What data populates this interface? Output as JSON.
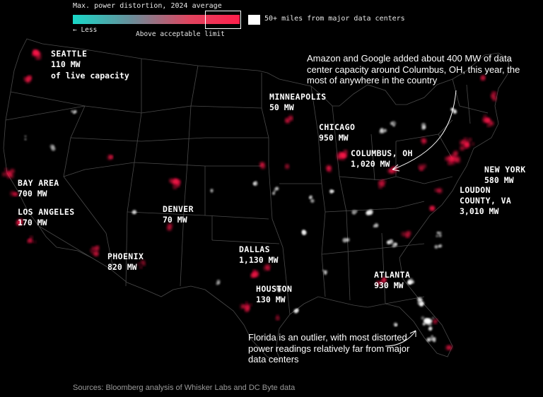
{
  "legend": {
    "title": "Max. power distortion, 2024 average",
    "less_label": "← Less",
    "above_label": "Above acceptable limit",
    "far_label": "50+ miles from major data centers",
    "color_low": "#19d8c8",
    "color_high": "#ff1f4b",
    "color_far": "#ffffff"
  },
  "cities": [
    {
      "name": "SEATTLE",
      "mw": "110 MW"
    },
    {
      "name": "MINNEAPOLIS",
      "mw": "50 MW"
    },
    {
      "name": "CHICAGO",
      "mw": "950 MW"
    },
    {
      "name": "COLUMBUS, OH",
      "mw": "1,020 MW"
    },
    {
      "name": "NEW YORK",
      "mw": "580 MW"
    },
    {
      "name": "LOUDON",
      "name2": "COUNTY, VA",
      "mw": "3,010 MW"
    },
    {
      "name": "BAY AREA",
      "mw": "700 MW"
    },
    {
      "name": "LOS ANGELES",
      "mw": "170 MW"
    },
    {
      "name": "DENVER",
      "mw": "70 MW"
    },
    {
      "name": "PHOENIX",
      "mw": "820 MW"
    },
    {
      "name": "DALLAS",
      "mw": "1,130 MW"
    },
    {
      "name": "HOUSTON",
      "mw": "130 MW"
    },
    {
      "name": "ATLANTA",
      "mw": "930 MW"
    }
  ],
  "seattle_note": "of live capacity",
  "annotations": {
    "columbus": "Amazon and Google added about 400 MW of data center capacity around Columbus, OH, this year, the most of anywhere in the country",
    "florida": "Florida is an outlier, with most distorted power readings relatively far from major data centers"
  },
  "source": "Sources: Bloomberg analysis of Whisker Labs and DC Byte data"
}
